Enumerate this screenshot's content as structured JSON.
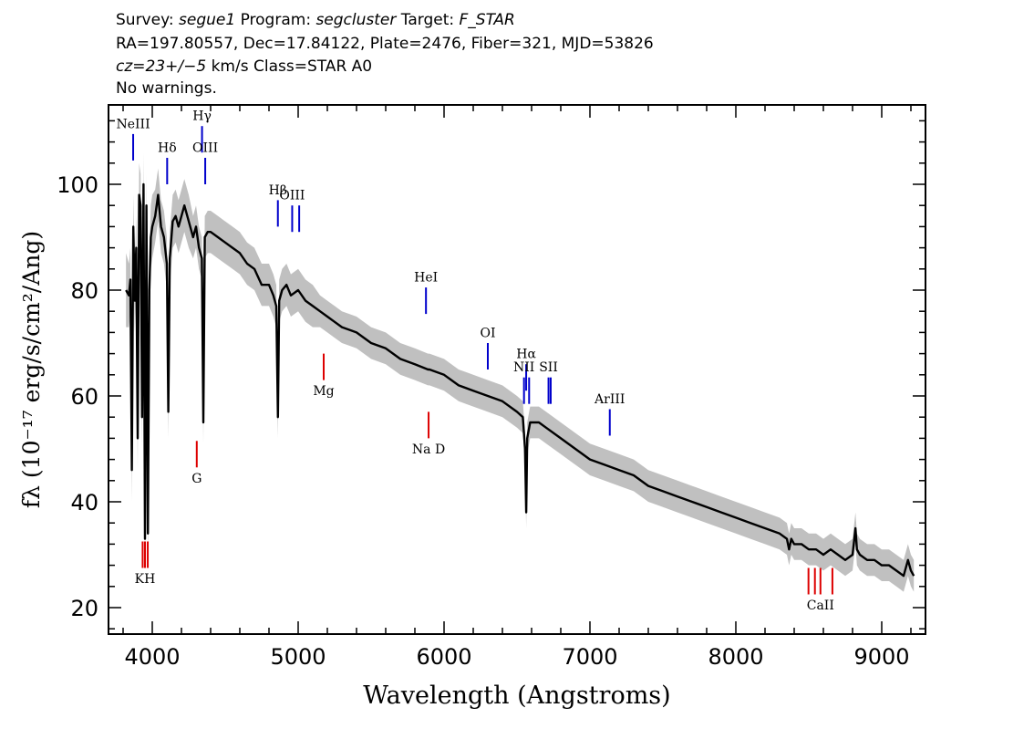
{
  "header": {
    "line1_a": "Survey: ",
    "line1_survey": "segue1",
    "line1_b": " Program: ",
    "line1_program": "segcluster",
    "line1_c": " Target: ",
    "line1_target": "F_STAR",
    "line2": "RA=197.80557, Dec=17.84122, Plate=2476, Fiber=321, MJD=53826",
    "line3_cz": "cz=23+/−5",
    "line3_rest": " km/s Class=STAR A0",
    "line4": "No warnings."
  },
  "chart_data": {
    "type": "line",
    "xlabel": "Wavelength (Angstroms)",
    "ylabel": "fλ (10⁻¹⁷ erg/s/cm²/Ang)",
    "xlim": [
      3700,
      9300
    ],
    "ylim": [
      15,
      115
    ],
    "x_ticks": [
      4000,
      5000,
      6000,
      7000,
      8000,
      9000
    ],
    "y_ticks": [
      20,
      40,
      60,
      80,
      100
    ],
    "grid": false,
    "colors": {
      "flux": "#000000",
      "error_band": "#c0c0c0",
      "emission_lines": "#0000cc",
      "absorption_lines": "#dd0000"
    },
    "series": [
      {
        "x": [
          3820,
          3840,
          3850,
          3860,
          3870,
          3880,
          3890,
          3900,
          3910,
          3920,
          3930,
          3940,
          3950,
          3960,
          3970,
          3980,
          3990,
          4000,
          4020,
          4040,
          4060,
          4080,
          4100,
          4110,
          4120,
          4140,
          4160,
          4180,
          4200,
          4220,
          4250,
          4280,
          4300,
          4320,
          4340,
          4350,
          4360,
          4380,
          4400,
          4450,
          4500,
          4550,
          4600,
          4650,
          4700,
          4750,
          4800,
          4830,
          4850,
          4861,
          4870,
          4890,
          4920,
          4950,
          5000,
          5050,
          5100,
          5150,
          5200,
          5250,
          5300,
          5400,
          5500,
          5600,
          5700,
          5800,
          5890,
          5900,
          6000,
          6100,
          6200,
          6300,
          6400,
          6500,
          6540,
          6555,
          6563,
          6570,
          6590,
          6650,
          6700,
          6800,
          6900,
          7000,
          7100,
          7200,
          7300,
          7400,
          7500,
          7600,
          7700,
          7800,
          7900,
          8000,
          8100,
          8200,
          8300,
          8350,
          8365,
          8380,
          8400,
          8450,
          8500,
          8550,
          8600,
          8650,
          8700,
          8750,
          8800,
          8820,
          8830,
          8850,
          8900,
          8950,
          9000,
          9050,
          9100,
          9150,
          9180,
          9200,
          9220
        ],
        "y": [
          80,
          79,
          82,
          46,
          92,
          78,
          88,
          52,
          98,
          96,
          56,
          100,
          33,
          96,
          34,
          80,
          90,
          92,
          94,
          98,
          92,
          90,
          85,
          57,
          86,
          93,
          94,
          92,
          94,
          96,
          93,
          90,
          92,
          88,
          86,
          55,
          90,
          91,
          91,
          90,
          89,
          88,
          87,
          85,
          84,
          81,
          81,
          79,
          77,
          56,
          78,
          80,
          81,
          79,
          80,
          78,
          77,
          76,
          75,
          74,
          73,
          72,
          70,
          69,
          67,
          66,
          65,
          65,
          64,
          62,
          61,
          60,
          59,
          57,
          56,
          50,
          38,
          52,
          55,
          55,
          54,
          52,
          50,
          48,
          47,
          46,
          45,
          43,
          42,
          41,
          40,
          39,
          38,
          37,
          36,
          35,
          34,
          33,
          31,
          33,
          32,
          32,
          31,
          31,
          30,
          31,
          30,
          29,
          30,
          35,
          31,
          30,
          29,
          29,
          28,
          28,
          27,
          26,
          29,
          27,
          26
        ],
        "err": [
          7,
          6,
          6,
          6,
          6,
          6,
          6,
          6,
          6,
          6,
          6,
          6,
          6,
          6,
          6,
          6,
          6,
          6,
          5,
          5,
          5,
          5,
          5,
          5,
          5,
          5,
          5,
          5,
          5,
          5,
          5,
          4,
          4,
          4,
          4,
          4,
          4,
          4,
          4,
          4,
          4,
          4,
          4,
          4,
          4,
          4,
          4,
          4,
          4,
          4,
          4,
          4,
          4,
          4,
          4,
          4,
          4,
          3,
          3,
          3,
          3,
          3,
          3,
          3,
          3,
          3,
          3,
          3,
          3,
          3,
          3,
          3,
          3,
          3,
          3,
          3,
          3,
          3,
          3,
          3,
          3,
          3,
          3,
          3,
          3,
          3,
          3,
          3,
          3,
          3,
          3,
          3,
          3,
          3,
          3,
          3,
          3,
          3,
          3,
          3,
          3,
          3,
          3,
          3,
          3,
          3,
          3,
          3,
          3,
          3,
          3,
          3,
          3,
          3,
          3,
          3,
          3,
          3,
          3,
          3,
          3
        ]
      }
    ],
    "lines": [
      {
        "label": "NeIII",
        "wavelength": 3869,
        "kind": "emission",
        "top": 109.5,
        "bottom": 104.5,
        "label_y": 111.5
      },
      {
        "label": "Hδ",
        "wavelength": 4102,
        "kind": "emission",
        "top": 105,
        "bottom": 100,
        "label_y": 107
      },
      {
        "label": "Hγ",
        "wavelength": 4341,
        "kind": "emission",
        "top": 111,
        "bottom": 106,
        "label_y": 113
      },
      {
        "label": "OIII",
        "wavelength": 4363,
        "kind": "emission",
        "top": 105,
        "bottom": 100,
        "label_y": 107
      },
      {
        "label": "Hβ",
        "wavelength": 4861,
        "kind": "emission",
        "top": 97,
        "bottom": 92,
        "label_y": 99
      },
      {
        "label": "OIII",
        "wavelength": 4959,
        "kind": "emission",
        "top": 96,
        "bottom": 91,
        "label_y": 98
      },
      {
        "label": "",
        "wavelength": 5007,
        "kind": "emission",
        "top": 96,
        "bottom": 91,
        "label_y": 98
      },
      {
        "label": "HeI",
        "wavelength": 5876,
        "kind": "emission",
        "top": 80.5,
        "bottom": 75.5,
        "label_y": 82.5
      },
      {
        "label": "OI",
        "wavelength": 6300,
        "kind": "emission",
        "top": 70,
        "bottom": 65,
        "label_y": 72
      },
      {
        "label": "Hα",
        "wavelength": 6563,
        "kind": "emission",
        "top": 66,
        "bottom": 61,
        "label_y": 68
      },
      {
        "label": "NII",
        "wavelength": 6548,
        "kind": "emission",
        "top": 63.5,
        "bottom": 58.5,
        "label_y": 65.5
      },
      {
        "label": "",
        "wavelength": 6583,
        "kind": "emission",
        "top": 63.5,
        "bottom": 58.5,
        "label_y": 65.5
      },
      {
        "label": "SII",
        "wavelength": 6716,
        "kind": "emission",
        "top": 63.5,
        "bottom": 58.5,
        "label_y": 65.5
      },
      {
        "label": "",
        "wavelength": 6731,
        "kind": "emission",
        "top": 63.5,
        "bottom": 58.5,
        "label_y": 65.5
      },
      {
        "label": "ArIII",
        "wavelength": 7136,
        "kind": "emission",
        "top": 57.5,
        "bottom": 52.5,
        "label_y": 59.5
      },
      {
        "label": "Mg",
        "wavelength": 5175,
        "kind": "absorption",
        "top": 68,
        "bottom": 63,
        "label_y": 61
      },
      {
        "label": "Na D",
        "wavelength": 5894,
        "kind": "absorption",
        "top": 57,
        "bottom": 52,
        "label_y": 50
      },
      {
        "label": "G",
        "wavelength": 4305,
        "kind": "absorption",
        "top": 51.5,
        "bottom": 46.5,
        "label_y": 44.5
      },
      {
        "label": "KH",
        "wavelength": 3950,
        "kind": "absorption",
        "top": 32.5,
        "bottom": 27.5,
        "label_y": 25.5
      },
      {
        "label": "",
        "wavelength": 3934,
        "kind": "absorption",
        "top": 32.5,
        "bottom": 27.5,
        "label_y": 25.5
      },
      {
        "label": "",
        "wavelength": 3969,
        "kind": "absorption",
        "top": 32.5,
        "bottom": 27.5,
        "label_y": 25.5
      },
      {
        "label": "CaII",
        "wavelength": 8580,
        "kind": "absorption",
        "top": 27.5,
        "bottom": 22.5,
        "label_y": 20.5
      },
      {
        "label": "",
        "wavelength": 8498,
        "kind": "absorption",
        "top": 27.5,
        "bottom": 22.5,
        "label_y": 20.5
      },
      {
        "label": "",
        "wavelength": 8542,
        "kind": "absorption",
        "top": 27.5,
        "bottom": 22.5,
        "label_y": 20.5
      },
      {
        "label": "",
        "wavelength": 8662,
        "kind": "absorption",
        "top": 27.5,
        "bottom": 22.5,
        "label_y": 20.5
      }
    ]
  }
}
